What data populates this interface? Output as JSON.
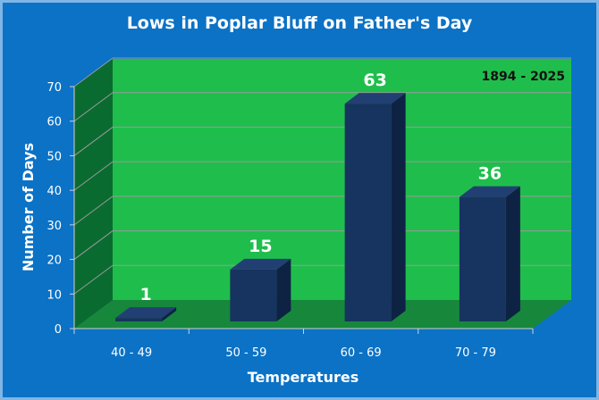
{
  "chart_data": {
    "type": "bar",
    "title": "Lows in Poplar Bluff on Father's Day",
    "xlabel": "Temperatures",
    "ylabel": "Number of Days",
    "annotation": "1894 - 2025",
    "categories": [
      "40 - 49",
      "50 - 59",
      "60 - 69",
      "70 - 79"
    ],
    "values": [
      1,
      15,
      63,
      36
    ],
    "ylim": [
      0,
      70
    ],
    "yticks": [
      "0",
      "10",
      "20",
      "30",
      "40",
      "50",
      "60",
      "70"
    ],
    "grid": true,
    "colors": {
      "background": "#0b72c6",
      "plot_wall": "#1fbe4c",
      "side_wall": "#0a6b30",
      "floor": "#17873c",
      "bar_front": "#17335f",
      "bar_side": "#0e2244",
      "bar_top": "#223f73",
      "text": "#ffffff"
    }
  }
}
